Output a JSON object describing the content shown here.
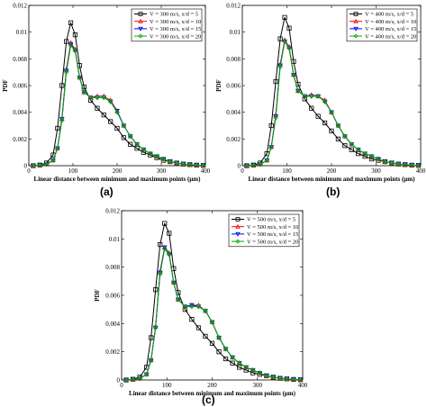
{
  "panels": [
    {
      "label": "(a)",
      "velocity_text": "V = 300 m/s"
    },
    {
      "label": "(b)",
      "velocity_text": "V = 400 m/s"
    },
    {
      "label": "(c)",
      "velocity_text": "V = 500 m/s"
    }
  ],
  "chart_data": [
    {
      "type": "line",
      "title": "",
      "xlabel": "Linear distance between minimum and maximum points (µm)",
      "ylabel": "PDF",
      "xlim": [
        0,
        400
      ],
      "ylim": [
        0,
        0.012
      ],
      "xticks": [
        "0",
        "100",
        "200",
        "300",
        "400"
      ],
      "yticks": [
        "0",
        "0.002",
        "0.004",
        "0.006",
        "0.008",
        "0.01",
        "0.012"
      ],
      "legend_position": "top-right",
      "series": [
        {
          "name": "V = 300 m/s, x/d = 5",
          "color": "#000000",
          "marker": "square",
          "x": [
            10,
            25,
            40,
            55,
            65,
            75,
            85,
            95,
            105,
            115,
            125,
            140,
            155,
            170,
            185,
            200,
            215,
            230,
            245,
            260,
            275,
            290,
            305,
            320,
            335,
            350,
            365,
            380,
            395
          ],
          "values": [
            0,
            5e-05,
            0.0002,
            0.0008,
            0.0028,
            0.006,
            0.0093,
            0.0107,
            0.0098,
            0.0075,
            0.0059,
            0.0049,
            0.0043,
            0.0038,
            0.0033,
            0.0028,
            0.0021,
            0.0016,
            0.0013,
            0.001,
            0.0008,
            0.0006,
            0.0004,
            0.0003,
            0.0002,
            0.00012,
            8e-05,
            4e-05,
            2e-05
          ]
        },
        {
          "name": "V = 300 m/s, x/d = 10",
          "color": "#ff0000",
          "marker": "triangle-up",
          "x": [
            10,
            25,
            40,
            55,
            65,
            75,
            85,
            95,
            105,
            115,
            125,
            140,
            155,
            170,
            185,
            200,
            215,
            230,
            245,
            260,
            275,
            290,
            305,
            320,
            335,
            350,
            365,
            380,
            395
          ],
          "values": [
            0,
            4e-05,
            0.0001,
            0.0004,
            0.0013,
            0.0035,
            0.0072,
            0.0092,
            0.0087,
            0.0066,
            0.0055,
            0.0051,
            0.0052,
            0.0052,
            0.0049,
            0.0041,
            0.003,
            0.0022,
            0.0016,
            0.0012,
            0.0009,
            0.0007,
            0.0005,
            0.0003,
            0.0002,
            0.00013,
            8e-05,
            4e-05,
            2e-05
          ]
        },
        {
          "name": "V = 300 m/s, x/d = 15",
          "color": "#0000ff",
          "marker": "triangle-down",
          "x": [
            10,
            25,
            40,
            55,
            65,
            75,
            85,
            95,
            105,
            115,
            125,
            140,
            155,
            170,
            185,
            200,
            215,
            230,
            245,
            260,
            275,
            290,
            305,
            320,
            335,
            350,
            365,
            380,
            395
          ],
          "values": [
            0,
            4e-05,
            0.0001,
            0.0004,
            0.0013,
            0.0035,
            0.0071,
            0.0091,
            0.0086,
            0.0066,
            0.0055,
            0.0051,
            0.0051,
            0.0051,
            0.0048,
            0.0041,
            0.003,
            0.0022,
            0.0016,
            0.0012,
            0.0009,
            0.0007,
            0.0005,
            0.0003,
            0.0002,
            0.00013,
            8e-05,
            4e-05,
            2e-05
          ]
        },
        {
          "name": "V = 300 m/s, x/d = 20",
          "color": "#00aa00",
          "marker": "diamond",
          "x": [
            10,
            25,
            40,
            55,
            65,
            75,
            85,
            95,
            105,
            115,
            125,
            140,
            155,
            170,
            185,
            200,
            215,
            230,
            245,
            260,
            275,
            290,
            305,
            320,
            335,
            350,
            365,
            380,
            395
          ],
          "values": [
            0,
            4e-05,
            0.0001,
            0.0004,
            0.0013,
            0.0034,
            0.007,
            0.009,
            0.0086,
            0.0066,
            0.0055,
            0.0051,
            0.0051,
            0.0051,
            0.0048,
            0.004,
            0.003,
            0.0022,
            0.0016,
            0.0012,
            0.0009,
            0.0007,
            0.0005,
            0.0003,
            0.0002,
            0.00013,
            8e-05,
            4e-05,
            2e-05
          ]
        }
      ]
    },
    {
      "type": "line",
      "title": "",
      "xlabel": "Linear distance between minimum and maximum points (µm)",
      "ylabel": "PDF",
      "xlim": [
        0,
        400
      ],
      "ylim": [
        0,
        0.012
      ],
      "xticks": [
        "0",
        "100",
        "200",
        "300",
        "400"
      ],
      "yticks": [
        "0",
        "0.002",
        "0.004",
        "0.006",
        "0.008",
        "0.01",
        "0.012"
      ],
      "legend_position": "top-right",
      "series": [
        {
          "name": "V = 400 m/s, x/d = 5",
          "color": "#000000",
          "marker": "square",
          "x": [
            10,
            25,
            40,
            55,
            65,
            75,
            85,
            95,
            105,
            115,
            125,
            140,
            155,
            170,
            185,
            200,
            215,
            230,
            245,
            260,
            275,
            290,
            305,
            320,
            335,
            350,
            365,
            380,
            395
          ],
          "values": [
            0,
            5e-05,
            0.0002,
            0.0009,
            0.003,
            0.0063,
            0.0095,
            0.0111,
            0.0103,
            0.0078,
            0.0061,
            0.005,
            0.0043,
            0.0037,
            0.0032,
            0.0026,
            0.002,
            0.0015,
            0.0012,
            0.0009,
            0.0007,
            0.0005,
            0.0004,
            0.0003,
            0.0002,
            0.00012,
            8e-05,
            4e-05,
            2e-05
          ]
        },
        {
          "name": "V = 400 m/s, x/d = 10",
          "color": "#ff0000",
          "marker": "triangle-up",
          "x": [
            10,
            25,
            40,
            55,
            65,
            75,
            85,
            95,
            105,
            115,
            125,
            140,
            155,
            170,
            185,
            200,
            215,
            230,
            245,
            260,
            275,
            290,
            305,
            320,
            335,
            350,
            365,
            380,
            395
          ],
          "values": [
            0,
            4e-05,
            0.0001,
            0.0004,
            0.0014,
            0.0038,
            0.0076,
            0.0094,
            0.0089,
            0.0068,
            0.0056,
            0.0052,
            0.0053,
            0.0052,
            0.0049,
            0.004,
            0.003,
            0.0022,
            0.0016,
            0.0012,
            0.0009,
            0.0007,
            0.0005,
            0.0003,
            0.0002,
            0.00013,
            8e-05,
            4e-05,
            2e-05
          ]
        },
        {
          "name": "V = 400 m/s, x/d = 15",
          "color": "#0000ff",
          "marker": "triangle-down",
          "x": [
            10,
            25,
            40,
            55,
            65,
            75,
            85,
            95,
            105,
            115,
            125,
            140,
            155,
            170,
            185,
            200,
            215,
            230,
            245,
            260,
            275,
            290,
            305,
            320,
            335,
            350,
            365,
            380,
            395
          ],
          "values": [
            0,
            4e-05,
            0.0001,
            0.0004,
            0.0014,
            0.0037,
            0.0075,
            0.0093,
            0.0088,
            0.0068,
            0.0056,
            0.0052,
            0.0052,
            0.0052,
            0.0048,
            0.004,
            0.003,
            0.0022,
            0.0016,
            0.0012,
            0.0009,
            0.0007,
            0.0005,
            0.0003,
            0.0002,
            0.00013,
            8e-05,
            4e-05,
            2e-05
          ]
        },
        {
          "name": "V = 400 m/s, x/d = 20",
          "color": "#00aa00",
          "marker": "diamond",
          "x": [
            10,
            25,
            40,
            55,
            65,
            75,
            85,
            95,
            105,
            115,
            125,
            140,
            155,
            170,
            185,
            200,
            215,
            230,
            245,
            260,
            275,
            290,
            305,
            320,
            335,
            350,
            365,
            380,
            395
          ],
          "values": [
            0,
            4e-05,
            0.0001,
            0.0004,
            0.0014,
            0.0036,
            0.0074,
            0.0093,
            0.0088,
            0.0068,
            0.0056,
            0.0052,
            0.0052,
            0.0052,
            0.0048,
            0.004,
            0.003,
            0.0022,
            0.0016,
            0.0012,
            0.0009,
            0.0007,
            0.0005,
            0.0003,
            0.0002,
            0.00013,
            8e-05,
            4e-05,
            2e-05
          ]
        }
      ]
    },
    {
      "type": "line",
      "title": "",
      "xlabel": "Linear distance between minimum and maximum points (µm)",
      "ylabel": "PDF",
      "xlim": [
        0,
        400
      ],
      "ylim": [
        0,
        0.012
      ],
      "xticks": [
        "0",
        "100",
        "200",
        "300",
        "400"
      ],
      "yticks": [
        "0",
        "0.002",
        "0.004",
        "0.006",
        "0.008",
        "0.01",
        "0.012"
      ],
      "legend_position": "top-right",
      "series": [
        {
          "name": "V = 500 m/s, x/d = 5",
          "color": "#000000",
          "marker": "square",
          "x": [
            10,
            25,
            40,
            55,
            65,
            75,
            85,
            95,
            105,
            115,
            125,
            140,
            155,
            170,
            185,
            200,
            215,
            230,
            245,
            260,
            275,
            290,
            305,
            320,
            335,
            350,
            365,
            380,
            395
          ],
          "values": [
            0,
            5e-05,
            0.0002,
            0.0009,
            0.003,
            0.0064,
            0.0096,
            0.0111,
            0.0104,
            0.0079,
            0.0062,
            0.005,
            0.0043,
            0.0037,
            0.0031,
            0.0026,
            0.002,
            0.0015,
            0.0012,
            0.0009,
            0.0007,
            0.0005,
            0.0004,
            0.0003,
            0.0002,
            0.00012,
            8e-05,
            4e-05,
            2e-05
          ]
        },
        {
          "name": "V = 500 m/s, x/d = 10",
          "color": "#ff0000",
          "marker": "triangle-up",
          "x": [
            10,
            25,
            40,
            55,
            65,
            75,
            85,
            95,
            105,
            115,
            125,
            140,
            155,
            170,
            185,
            200,
            215,
            230,
            245,
            260,
            275,
            290,
            305,
            320,
            335,
            350,
            365,
            380,
            395
          ],
          "values": [
            0,
            4e-05,
            0.0001,
            0.0004,
            0.0014,
            0.0038,
            0.0077,
            0.0094,
            0.009,
            0.0069,
            0.0057,
            0.0052,
            0.0053,
            0.0053,
            0.0049,
            0.0041,
            0.003,
            0.0022,
            0.0016,
            0.0012,
            0.0009,
            0.0007,
            0.0005,
            0.0003,
            0.0002,
            0.00013,
            8e-05,
            4e-05,
            2e-05
          ]
        },
        {
          "name": "V = 500 m/s, x/d = 15",
          "color": "#0000ff",
          "marker": "triangle-down",
          "x": [
            10,
            25,
            40,
            55,
            65,
            75,
            85,
            95,
            105,
            115,
            125,
            140,
            155,
            170,
            185,
            200,
            215,
            230,
            245,
            260,
            275,
            290,
            305,
            320,
            335,
            350,
            365,
            380,
            395
          ],
          "values": [
            0,
            4e-05,
            0.0001,
            0.0004,
            0.0014,
            0.0037,
            0.0076,
            0.0094,
            0.0089,
            0.0069,
            0.0057,
            0.0052,
            0.0053,
            0.0052,
            0.0049,
            0.0041,
            0.003,
            0.0022,
            0.0016,
            0.0012,
            0.0009,
            0.0007,
            0.0005,
            0.0003,
            0.0002,
            0.00013,
            8e-05,
            4e-05,
            2e-05
          ]
        },
        {
          "name": "V = 500 m/s, x/d = 20",
          "color": "#00aa00",
          "marker": "diamond",
          "x": [
            10,
            25,
            40,
            55,
            65,
            75,
            85,
            95,
            105,
            115,
            125,
            140,
            155,
            170,
            185,
            200,
            215,
            230,
            245,
            260,
            275,
            290,
            305,
            320,
            335,
            350,
            365,
            380,
            395
          ],
          "values": [
            0,
            4e-05,
            0.0001,
            0.0004,
            0.0014,
            0.0037,
            0.0075,
            0.0093,
            0.0089,
            0.0069,
            0.0057,
            0.0052,
            0.0052,
            0.0052,
            0.0049,
            0.0041,
            0.003,
            0.0022,
            0.0016,
            0.0012,
            0.0009,
            0.0007,
            0.0005,
            0.0003,
            0.0002,
            0.00013,
            8e-05,
            4e-05,
            2e-05
          ]
        }
      ]
    }
  ]
}
